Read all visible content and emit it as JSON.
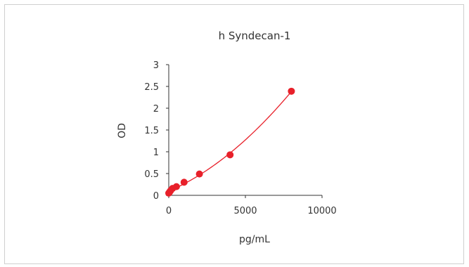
{
  "chart_data": {
    "type": "scatter",
    "title": "h  Syndecan-1",
    "xlabel": "pg/mL",
    "ylabel": "OD",
    "xlim": [
      0,
      10000
    ],
    "ylim": [
      0,
      3
    ],
    "x_ticks": [
      0,
      5000,
      10000
    ],
    "y_ticks": [
      0,
      0.5,
      1,
      1.5,
      2,
      2.5,
      3
    ],
    "grid": false,
    "legend": "none",
    "colors": {
      "series": "#e8202a",
      "axis": "#333333"
    },
    "series": [
      {
        "x": [
          0,
          62.5,
          125,
          250,
          500,
          1000,
          2000,
          4000,
          8000
        ],
        "y": [
          0.05,
          0.08,
          0.11,
          0.16,
          0.2,
          0.3,
          0.49,
          0.93,
          2.39
        ],
        "fit_line": true
      }
    ]
  }
}
